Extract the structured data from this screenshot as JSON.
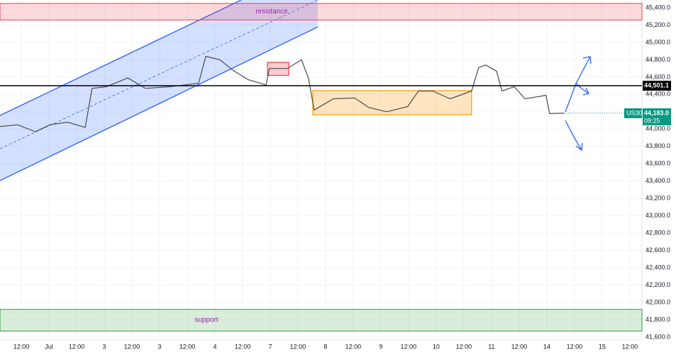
{
  "chart_data": {
    "type": "line",
    "series": [
      {
        "name": "US30",
        "color": "#4a4a4a",
        "values": [
          44030,
          44050,
          43970,
          44050,
          44080,
          44020,
          44470,
          44490,
          44590,
          44470,
          44490,
          44530,
          44840,
          44800,
          44670,
          44570,
          44510,
          44700,
          44700,
          44800,
          44590,
          44220,
          44350,
          44360,
          44250,
          44200,
          44260,
          44440,
          44440,
          44350,
          44440,
          44710,
          44740,
          44670,
          44440,
          44490,
          44350,
          44390,
          44180,
          44183
        ]
      }
    ],
    "x": [
      -0.77,
      -0.13,
      0.51,
      1.03,
      1.67,
      2.31,
      2.56,
      3.08,
      3.85,
      4.49,
      5.38,
      6.41,
      6.67,
      7.18,
      7.69,
      8.21,
      8.85,
      8.97,
      9.62,
      10.13,
      10.38,
      10.59,
      11.28,
      12.05,
      12.56,
      13.21,
      13.97,
      14.36,
      14.87,
      15.51,
      16.28,
      16.54,
      16.79,
      17.18,
      17.38,
      17.82,
      18.21,
      18.97,
      19.1,
      19.62
    ],
    "xlim": [
      -0.77,
      22.44
    ],
    "xticks": [
      {
        "value": 0,
        "label": "12:00"
      },
      {
        "value": 1,
        "label": "Jul"
      },
      {
        "value": 2,
        "label": "12:00"
      },
      3,
      {
        "value": 4,
        "label": "12:00"
      },
      {
        "value": 5,
        "label": "3"
      },
      {
        "value": 6,
        "label": "12:00"
      },
      {
        "value": 7,
        "label": "4"
      },
      {
        "value": 8,
        "label": "12:00"
      },
      {
        "value": 9,
        "label": "7"
      },
      {
        "value": 10,
        "label": "12:00"
      },
      {
        "value": 11,
        "label": "8"
      },
      {
        "value": 12,
        "label": "12:00"
      },
      {
        "value": 13,
        "label": "9"
      },
      {
        "value": 14,
        "label": "12:00"
      },
      {
        "value": 15,
        "label": "10"
      },
      {
        "value": 16,
        "label": "12:00"
      },
      {
        "value": 17,
        "label": "11"
      },
      {
        "value": 18,
        "label": "12:00"
      },
      {
        "value": 19,
        "label": "14"
      },
      {
        "value": 20,
        "label": "12:00"
      },
      {
        "value": 21,
        "label": "15"
      },
      {
        "value": 22,
        "label": "12:00"
      }
    ],
    "ylim": [
      41567,
      45490
    ],
    "yticks": [
      {
        "value": 41600,
        "label": "41,600.0"
      },
      {
        "value": 41800,
        "label": "41,800.0"
      },
      {
        "value": 42000,
        "label": "42,000.0"
      },
      {
        "value": 42200,
        "label": "42,200.0"
      },
      {
        "value": 42400,
        "label": "42,400.0"
      },
      {
        "value": 42600,
        "label": "42,600.0"
      },
      {
        "value": 42800,
        "label": "42,800.0"
      },
      {
        "value": 43000,
        "label": "43,000.0"
      },
      {
        "value": 43200,
        "label": "43,200.0"
      },
      {
        "value": 43400,
        "label": "43,400.0"
      },
      {
        "value": 43600,
        "label": "43,600.0"
      },
      {
        "value": 43800,
        "label": "43,800.0"
      },
      {
        "value": 44000,
        "label": "44,000.0"
      },
      {
        "value": 44200,
        "label": "44,200.0"
      },
      {
        "value": 44400,
        "label": "44,400.0"
      },
      {
        "value": 44600,
        "label": "44,600.0"
      },
      {
        "value": 44800,
        "label": "44,800.0"
      },
      {
        "value": 45000,
        "label": "45,000.0"
      },
      {
        "value": 45200,
        "label": "45,200.0"
      },
      {
        "value": 45400,
        "label": "45,400.0"
      }
    ],
    "grid": true,
    "zones": [
      {
        "label": "resistance",
        "range": [
          45260,
          45450
        ],
        "color": "#f23645"
      },
      {
        "label": "support",
        "range": [
          41670,
          41920
        ],
        "color": "#2e9c3a"
      }
    ],
    "boxes": [
      {
        "xrange": [
          10.54,
          16.28
        ],
        "range": [
          44166,
          44444
        ],
        "color": "#ff9800"
      },
      {
        "xrange": [
          8.9,
          9.67
        ],
        "range": [
          44620,
          44770
        ],
        "color": "#f23645"
      }
    ],
    "price_line": {
      "value": 44501.1,
      "label": "44,501.1",
      "color": "#000000"
    },
    "last_price": {
      "symbol": "US30",
      "value": 44183,
      "label": "44,183.0",
      "countdown": "09:25",
      "color": "#089981"
    }
  }
}
